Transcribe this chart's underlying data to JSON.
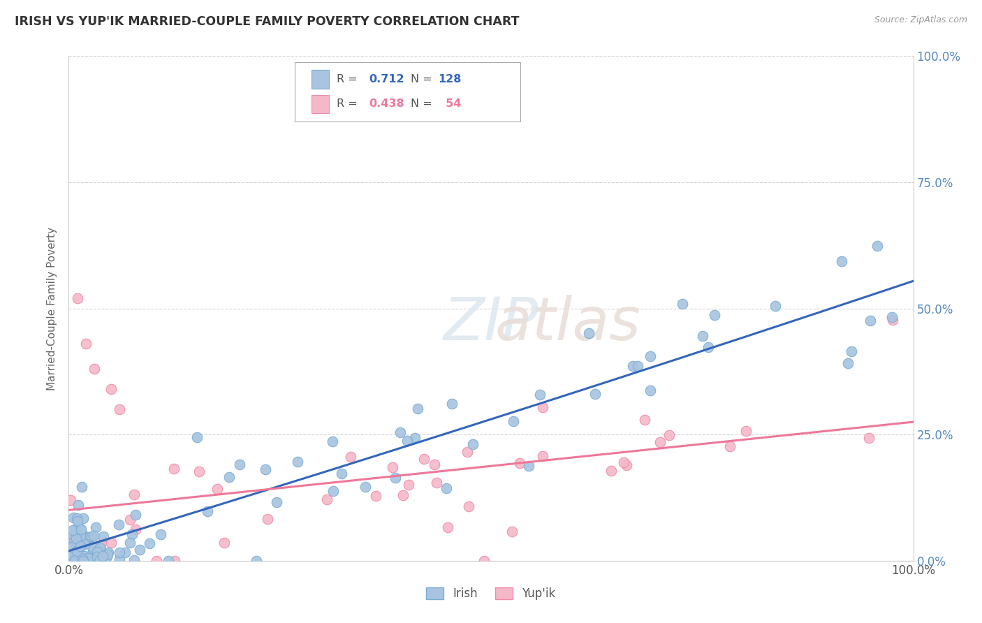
{
  "title": "IRISH VS YUP'IK MARRIED-COUPLE FAMILY POVERTY CORRELATION CHART",
  "source": "Source: ZipAtlas.com",
  "ylabel": "Married-Couple Family Poverty",
  "legend_irish": {
    "R": "0.712",
    "N": "128"
  },
  "legend_yupik": {
    "R": "0.438",
    "N": "54"
  },
  "irish_color": "#a8c4e0",
  "yupik_color": "#f4b8c8",
  "irish_edge_color": "#7aadd4",
  "yupik_edge_color": "#f08aaa",
  "irish_line_color": "#3366bb",
  "yupik_line_color": "#ee7799",
  "background_color": "#ffffff",
  "grid_color": "#d0d0d0",
  "title_color": "#333333",
  "ytick_color": "#5588bb",
  "xlim": [
    0.0,
    1.0
  ],
  "ylim": [
    0.0,
    1.0
  ],
  "ytick_values": [
    0.0,
    0.25,
    0.5,
    0.75,
    1.0
  ],
  "ytick_labels": [
    "0.0%",
    "25.0%",
    "50.0%",
    "75.0%",
    "100.0%"
  ]
}
